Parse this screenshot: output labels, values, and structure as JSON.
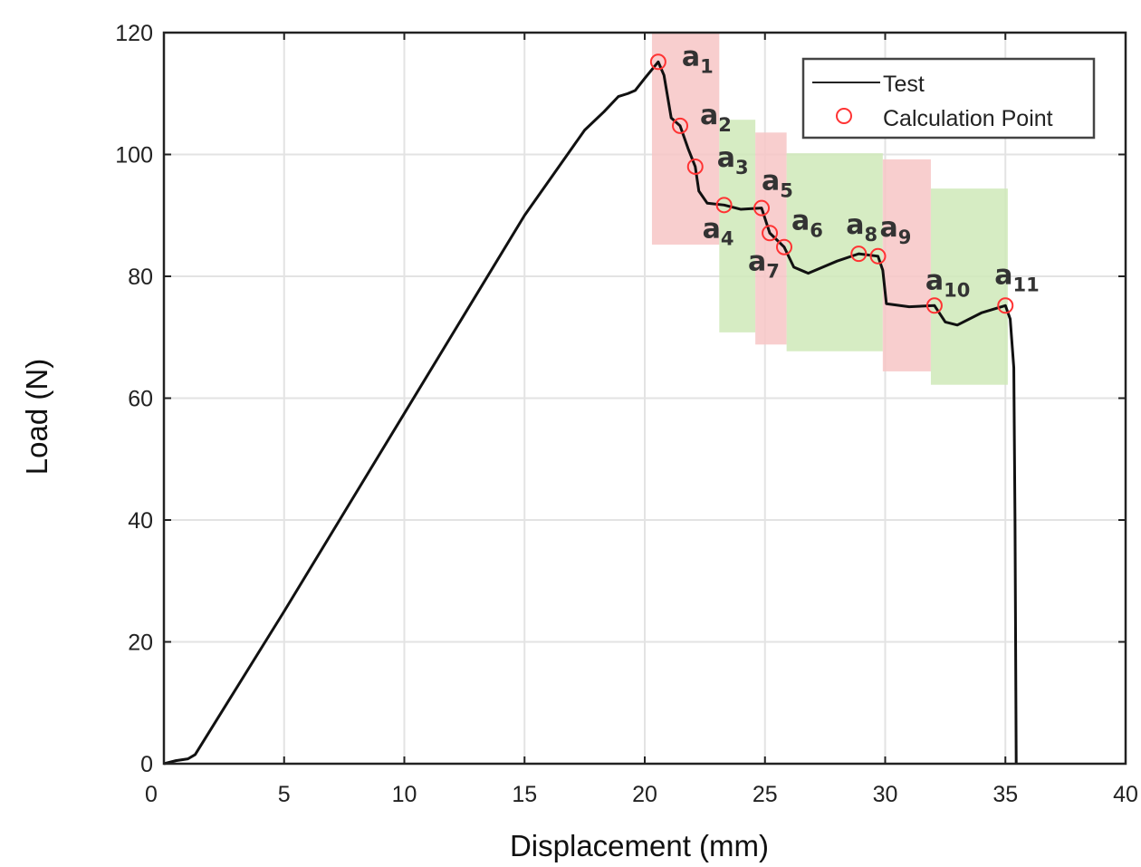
{
  "chart_data": {
    "type": "line",
    "title": "",
    "xlabel": "Displacement (mm)",
    "ylabel": "Load (N)",
    "xlim": [
      0,
      40
    ],
    "ylim": [
      0,
      120
    ],
    "xticks": [
      0,
      5,
      10,
      15,
      20,
      25,
      30,
      35,
      40
    ],
    "yticks": [
      0,
      20,
      40,
      60,
      80,
      100,
      120
    ],
    "grid": true,
    "legend": {
      "placement": "top-right",
      "entries": [
        "Test",
        "Calculation Point"
      ]
    },
    "series": [
      {
        "name": "Test",
        "color": "#111111",
        "x": [
          0,
          0.5,
          1.0,
          1.3,
          5,
          10,
          15,
          17.5,
          18.3,
          18.9,
          19.3,
          19.6,
          20.0,
          20.56,
          20.8,
          21.1,
          21.47,
          21.8,
          22.1,
          22.25,
          22.6,
          23.3,
          24.0,
          24.86,
          25.2,
          25.8,
          26.2,
          26.8,
          28.0,
          28.9,
          29.7,
          29.9,
          30.05,
          31.0,
          32.05,
          32.5,
          33.0,
          34.0,
          35.0,
          35.2,
          35.35,
          35.4,
          35.45
        ],
        "y": [
          0,
          0.5,
          0.8,
          1.5,
          25,
          57.5,
          90,
          104,
          107,
          109.5,
          110,
          110.5,
          112.5,
          115.2,
          113,
          106,
          104.7,
          101,
          98,
          94,
          92,
          91.7,
          91,
          91.2,
          87.1,
          84.8,
          81.5,
          80.5,
          82.5,
          83.7,
          83.3,
          81,
          75.5,
          75,
          75.2,
          72.5,
          72,
          74,
          75.2,
          73,
          65,
          40,
          0
        ]
      },
      {
        "name": "Calculation Point",
        "color": "#ff3333",
        "marker": "circle-open",
        "labels": [
          "a1",
          "a2",
          "a3",
          "a4",
          "a5",
          "a6",
          "a7",
          "a8",
          "a9",
          "a10",
          "a11"
        ],
        "label_base": [
          "a",
          "a",
          "a",
          "a",
          "a",
          "a",
          "a",
          "a",
          "a",
          "a",
          "a"
        ],
        "label_sub": [
          "1",
          "2",
          "3",
          "4",
          "5",
          "6",
          "7",
          "8",
          "9",
          "10",
          "11"
        ],
        "x": [
          20.56,
          21.47,
          22.1,
          23.3,
          24.86,
          25.2,
          25.8,
          28.9,
          29.7,
          32.05,
          35.0
        ],
        "y": [
          115.2,
          104.7,
          98.0,
          91.7,
          91.2,
          87.1,
          84.8,
          83.7,
          83.3,
          75.2,
          75.2
        ]
      }
    ],
    "regions": [
      {
        "color": "#f7c6c6",
        "x": [
          20.3,
          23.1
        ],
        "y": [
          85.2,
          120
        ]
      },
      {
        "color": "#cfe9b8",
        "x": [
          23.1,
          24.6
        ],
        "y": [
          70.8,
          105.7
        ]
      },
      {
        "color": "#f7c6c6",
        "x": [
          24.6,
          25.9
        ],
        "y": [
          68.8,
          103.6
        ]
      },
      {
        "color": "#cfe9b8",
        "x": [
          25.9,
          29.9
        ],
        "y": [
          67.7,
          100.2
        ]
      },
      {
        "color": "#f7c6c6",
        "x": [
          29.9,
          31.9
        ],
        "y": [
          64.4,
          99.2
        ]
      },
      {
        "color": "#cfe9b8",
        "x": [
          31.9,
          35.1
        ],
        "y": [
          62.2,
          94.4
        ]
      }
    ]
  }
}
